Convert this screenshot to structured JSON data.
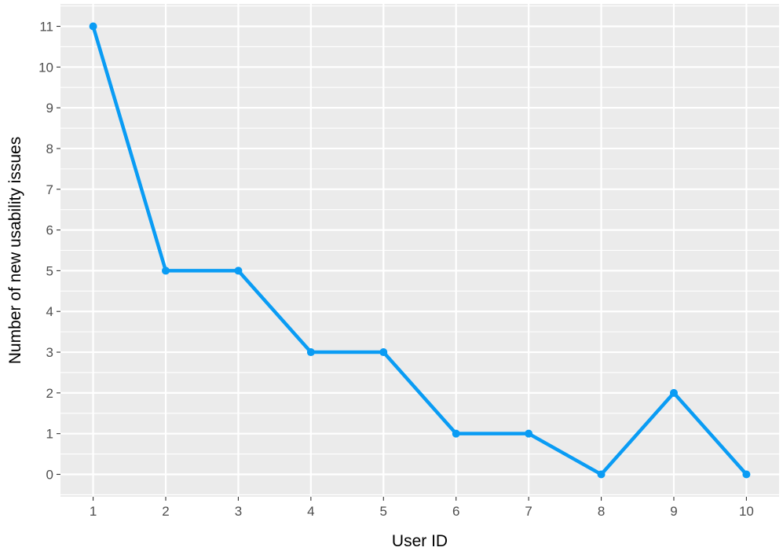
{
  "chart_data": {
    "type": "line",
    "title": "",
    "xlabel": "User ID",
    "ylabel": "Number of new usability issues",
    "x": [
      1,
      2,
      3,
      4,
      5,
      6,
      7,
      8,
      9,
      10
    ],
    "series": [
      {
        "values": [
          11,
          5,
          5,
          3,
          3,
          1,
          1,
          0,
          2,
          0
        ],
        "color": "#0a9cf4"
      }
    ],
    "xlim": [
      0.55,
      10.45
    ],
    "ylim": [
      -0.55,
      11.55
    ],
    "x_ticks": [
      1,
      2,
      3,
      4,
      5,
      6,
      7,
      8,
      9,
      10
    ],
    "y_ticks": [
      0,
      1,
      2,
      3,
      4,
      5,
      6,
      7,
      8,
      9,
      10,
      11
    ],
    "grid": true,
    "panel_background": "#ebebeb",
    "grid_color": "#ffffff",
    "legend": "none"
  }
}
